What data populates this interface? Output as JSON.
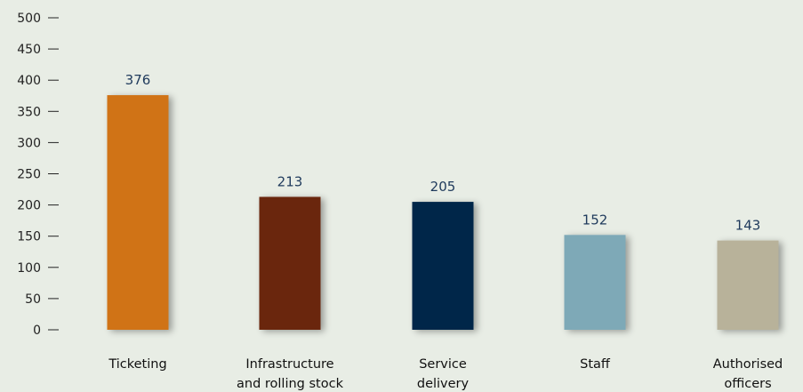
{
  "chart_data": {
    "type": "bar",
    "categories": [
      [
        "Ticketing"
      ],
      [
        "Infrastructure",
        "and rolling stock"
      ],
      [
        "Service",
        "delivery"
      ],
      [
        "Staff"
      ],
      [
        "Authorised",
        "officers"
      ]
    ],
    "values": [
      376,
      213,
      205,
      152,
      143
    ],
    "bar_colors": [
      "#d07318",
      "#6b2710",
      "#00264a",
      "#7ea9b7",
      "#b8b29a"
    ],
    "ylim": [
      0,
      500
    ],
    "yticks": [
      0,
      50,
      100,
      150,
      200,
      250,
      300,
      350,
      400,
      450,
      500
    ],
    "title": "",
    "xlabel": "",
    "ylabel": "",
    "grid": false,
    "background": "#e8ede5",
    "value_label_color": "#1f3a5c"
  }
}
